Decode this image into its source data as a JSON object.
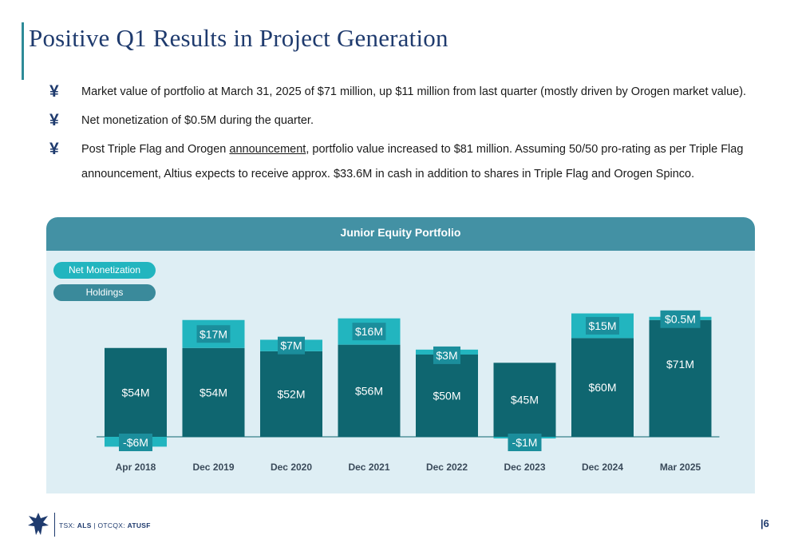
{
  "title": "Positive Q1 Results in Project Generation",
  "bullets": [
    {
      "icon": "eagle-bullet-icon",
      "glyph": "¥",
      "text": "Market value of portfolio at March 31, 2025 of $71 million, up $11 million from last quarter (mostly driven by Orogen market value)."
    },
    {
      "icon": "eagle-bullet-icon",
      "glyph": "¥",
      "text": "Net monetization of $0.5M during the quarter."
    },
    {
      "icon": "eagle-bullet-icon",
      "glyph": "¥",
      "text_before": "Post Triple Flag and Orogen ",
      "link_text": "announcement",
      "text_after": ", portfolio value increased to $81 million. Assuming 50/50 pro-rating as per Triple Flag announcement, Altius expects to receive approx. $33.6M in cash in addition to shares in Triple Flag and Orogen Spinco."
    }
  ],
  "colors": {
    "holdings": "#0f6670",
    "net_monetization": "#22b5bf",
    "label_box": "#1b8e9c",
    "header": "#4391a4",
    "panel": "#deeef4",
    "title": "#1f3b6e"
  },
  "chart_data": {
    "type": "bar",
    "title": "Junior Equity Portfolio",
    "legend": [
      "Net Monetization",
      "Holdings"
    ],
    "categories": [
      "Apr 2018",
      "Dec  2019",
      "Dec 2020",
      "Dec 2021",
      "Dec 2022",
      "Dec 2023",
      "Dec 2024",
      "Mar 2025"
    ],
    "series": [
      {
        "name": "Holdings",
        "values": [
          54,
          54,
          52,
          56,
          50,
          45,
          60,
          71
        ],
        "labels": [
          "$54M",
          "$54M",
          "$52M",
          "$56M",
          "$50M",
          "$45M",
          "$60M",
          "$71M"
        ]
      },
      {
        "name": "Net Monetization",
        "values": [
          -6,
          17,
          7,
          16,
          3,
          -1,
          15,
          0.5
        ],
        "labels": [
          "-$6M",
          "$17M",
          "$7M",
          "$16M",
          "$3M",
          "-$1M",
          "$15M",
          "$0.5M"
        ]
      }
    ],
    "ylim": [
      -8,
      76
    ],
    "grid": false,
    "legend_position": "top-left"
  },
  "footer": {
    "exchange_1": "TSX: ",
    "ticker_1": "ALS",
    "separator": " | OTCQX: ",
    "ticker_2": "ATUSF",
    "logo": "eagle-logo-icon"
  },
  "page_number": "|6"
}
